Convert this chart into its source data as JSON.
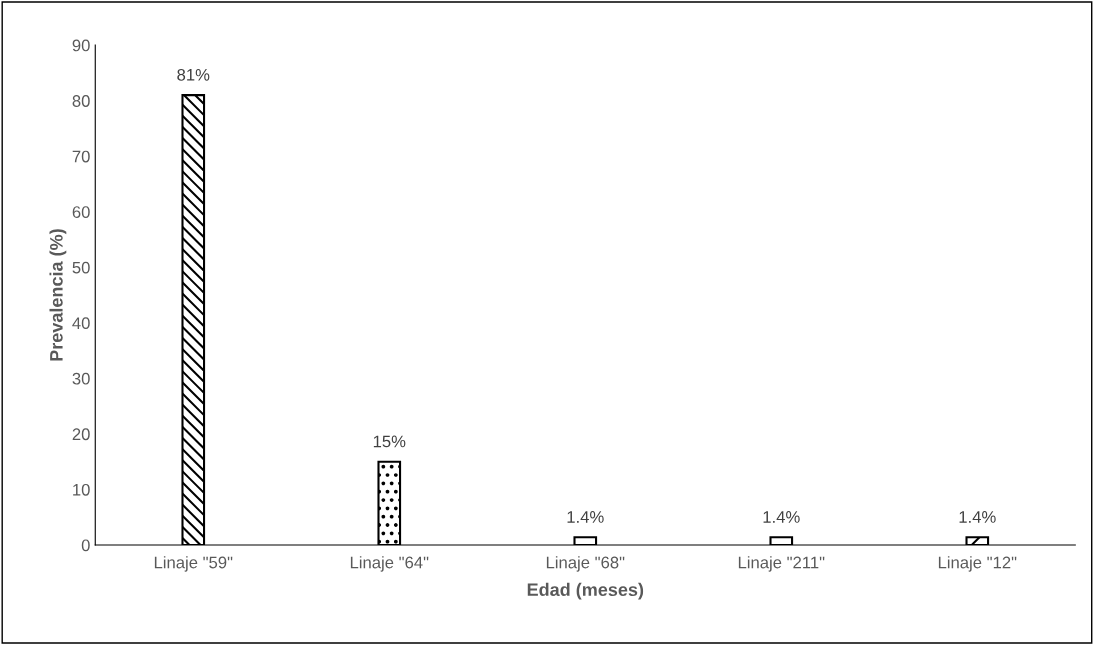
{
  "chart_data": {
    "type": "bar",
    "xlabel": "Edad (meses)",
    "ylabel": "Prevalencia (%)",
    "categories": [
      "Linaje \"59\"",
      "Linaje \"64\"",
      "Linaje \"68\"",
      "Linaje \"211\"",
      "Linaje \"12\""
    ],
    "values": [
      81,
      15,
      1.4,
      1.4,
      1.4
    ],
    "value_labels": [
      "81%",
      "15%",
      "1.4%",
      "1.4%",
      "1.4%"
    ],
    "colors": [
      "#000000",
      "#000000",
      "#ffffff",
      "#ffffff",
      "#000000"
    ],
    "ylim": [
      0,
      90
    ],
    "yticks": [
      0,
      10,
      20,
      30,
      40,
      50,
      60,
      70,
      80,
      90
    ],
    "grid": false,
    "legend": false
  }
}
